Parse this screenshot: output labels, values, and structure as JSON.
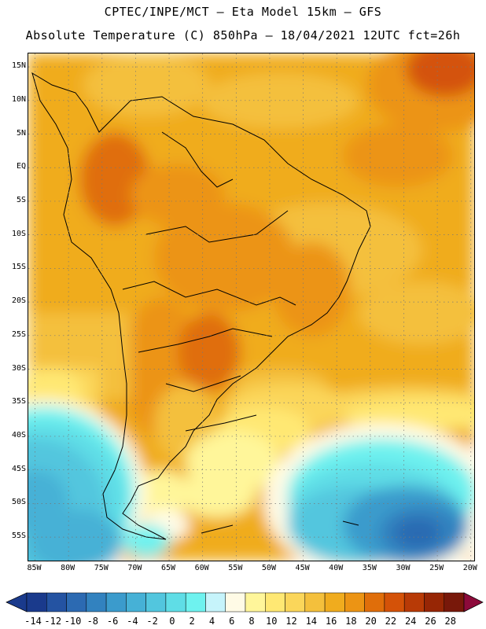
{
  "header": {
    "line1": "CPTEC/INPE/MCT —  Eta Model 15km — GFS",
    "line2": "Absolute Temperature (C) 850hPa — 18/04/2021 12UTC fct=26h"
  },
  "map": {
    "extent": {
      "lon_min": -86,
      "lon_max": -19.5,
      "lat_min": -58.5,
      "lat_max": 17
    },
    "lat_ticks": [
      "15N",
      "10N",
      "5N",
      "EQ",
      "5S",
      "10S",
      "15S",
      "20S",
      "25S",
      "30S",
      "35S",
      "40S",
      "45S",
      "50S",
      "55S"
    ],
    "lon_ticks": [
      "85W",
      "80W",
      "75W",
      "70W",
      "65W",
      "60W",
      "55W",
      "50W",
      "45W",
      "40W",
      "35W",
      "30W",
      "25W",
      "20W"
    ],
    "gridlines": "dotted"
  },
  "colorbar": {
    "labels": [
      "-14",
      "-12",
      "-10",
      "-8",
      "-6",
      "-4",
      "-2",
      "0",
      "2",
      "4",
      "6",
      "8",
      "10",
      "12",
      "14",
      "16",
      "18",
      "20",
      "22",
      "24",
      "26",
      "28"
    ],
    "colors": [
      "#1a3a8c",
      "#2453a2",
      "#2c6ab2",
      "#3282bf",
      "#3b9bcc",
      "#46b1d6",
      "#52c6de",
      "#5fdde6",
      "#6ef2ef",
      "#c6f4fb",
      "#fffbe6",
      "#fff69a",
      "#ffe873",
      "#fbd65a",
      "#f4c03c",
      "#f0ac1e",
      "#ec9414",
      "#e06e0a",
      "#d45208",
      "#b83a06",
      "#972605",
      "#78180a"
    ],
    "extend": "both"
  }
}
